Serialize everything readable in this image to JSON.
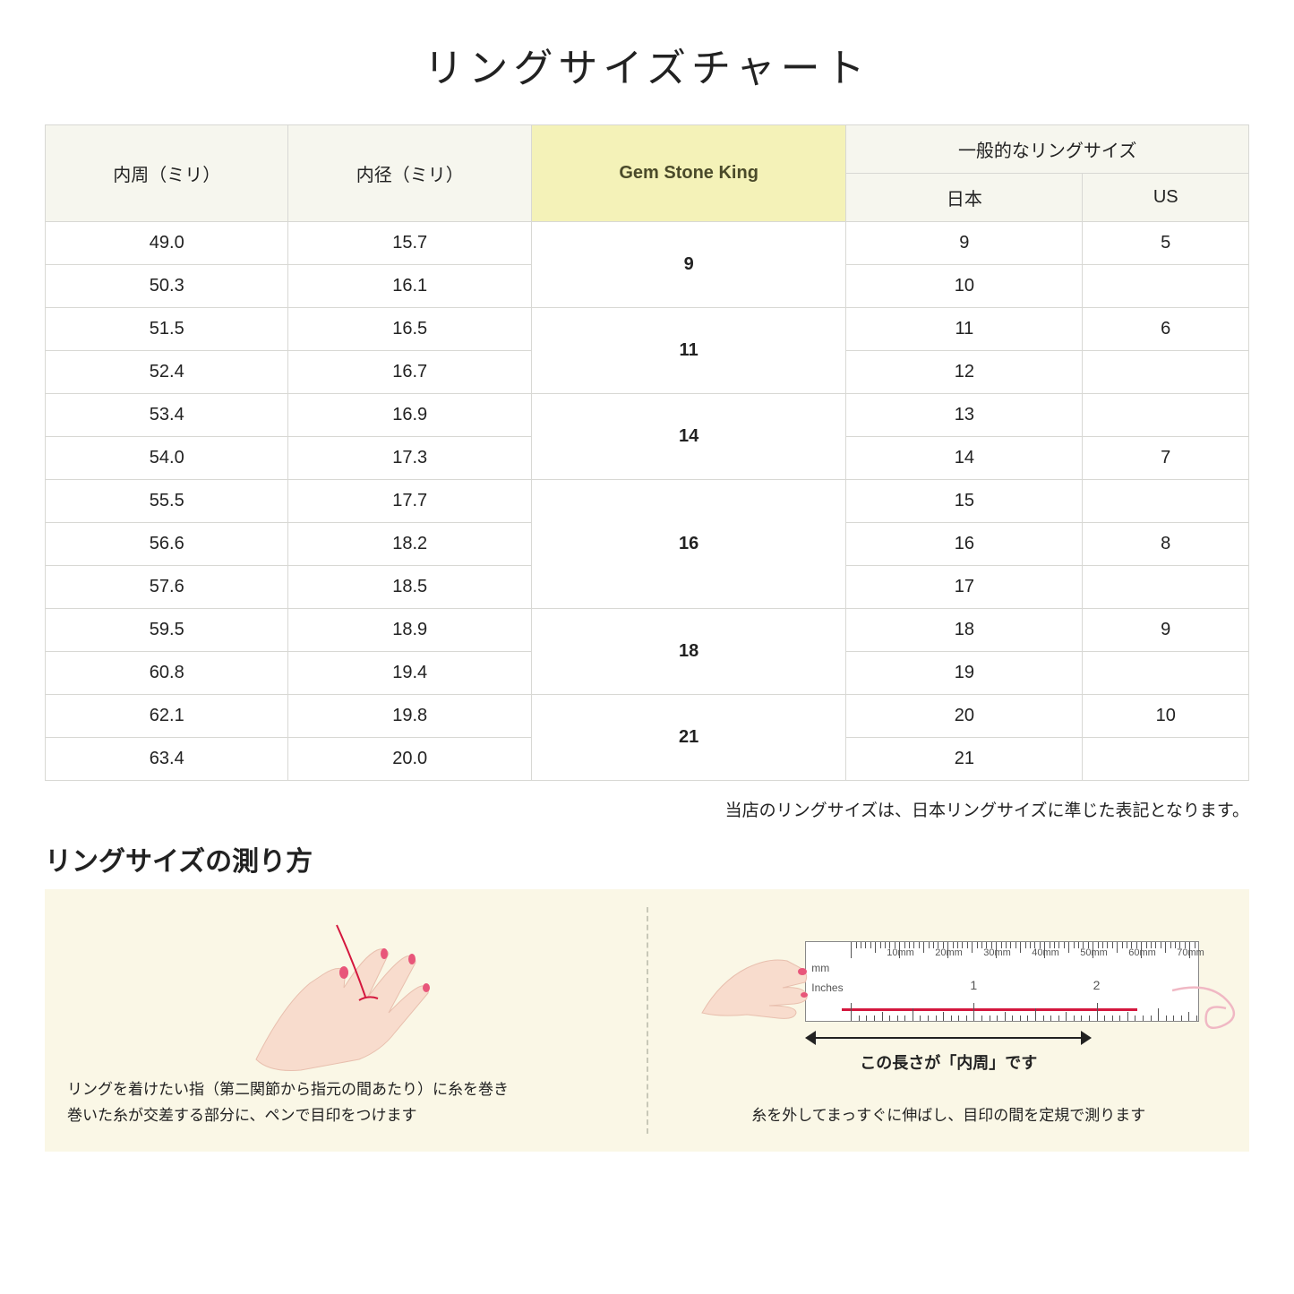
{
  "title": "リングサイズチャート",
  "table": {
    "headers": {
      "col1": "内周（ミリ）",
      "col2": "内径（ミリ）",
      "col3": "Gem Stone King",
      "col4_group": "一般的なリングサイズ",
      "col4a": "日本",
      "col4b": "US"
    },
    "groups": [
      {
        "gsk": "9",
        "rows": [
          {
            "c": "49.0",
            "d": "15.7",
            "jp": "9",
            "us": "5"
          },
          {
            "c": "50.3",
            "d": "16.1",
            "jp": "10",
            "us": ""
          }
        ]
      },
      {
        "gsk": "11",
        "rows": [
          {
            "c": "51.5",
            "d": "16.5",
            "jp": "11",
            "us": "6"
          },
          {
            "c": "52.4",
            "d": "16.7",
            "jp": "12",
            "us": ""
          }
        ]
      },
      {
        "gsk": "14",
        "rows": [
          {
            "c": "53.4",
            "d": "16.9",
            "jp": "13",
            "us": ""
          },
          {
            "c": "54.0",
            "d": "17.3",
            "jp": "14",
            "us": "7"
          }
        ]
      },
      {
        "gsk": "16",
        "rows": [
          {
            "c": "55.5",
            "d": "17.7",
            "jp": "15",
            "us": ""
          },
          {
            "c": "56.6",
            "d": "18.2",
            "jp": "16",
            "us": "8"
          },
          {
            "c": "57.6",
            "d": "18.5",
            "jp": "17",
            "us": ""
          }
        ]
      },
      {
        "gsk": "18",
        "rows": [
          {
            "c": "59.5",
            "d": "18.9",
            "jp": "18",
            "us": "9"
          },
          {
            "c": "60.8",
            "d": "19.4",
            "jp": "19",
            "us": ""
          }
        ]
      },
      {
        "gsk": "21",
        "rows": [
          {
            "c": "62.1",
            "d": "19.8",
            "jp": "20",
            "us": "10"
          },
          {
            "c": "63.4",
            "d": "20.0",
            "jp": "21",
            "us": ""
          }
        ]
      }
    ]
  },
  "note": "当店のリングサイズは、日本リングサイズに準じた表記となります。",
  "measure_title": "リングサイズの測り方",
  "panel1_text": "リングを着けたい指（第二関節から指元の間あたり）に糸を巻き\n巻いた糸が交差する部分に、ペンで目印をつけます",
  "panel2_arrow_caption": "この長さが「内周」です",
  "panel2_text": "糸を外してまっすぐに伸ばし、目印の間を定規で測ります",
  "ruler": {
    "mm_labels": [
      "10mm",
      "20mm",
      "30mm",
      "40mm",
      "50mm",
      "60mm",
      "70mm"
    ],
    "unit_mm": "mm",
    "unit_in": "Inches",
    "in_labels": [
      "1",
      "2"
    ]
  },
  "colors": {
    "header_bg": "#f6f6ee",
    "highlight_bg": "#f4f2b8",
    "border": "#d8d8d4",
    "panel_bg": "#faf7e6",
    "skin": "#f8dccd",
    "skin_shadow": "#e8bfae",
    "nail": "#e8567a",
    "thread": "#d4173e"
  }
}
